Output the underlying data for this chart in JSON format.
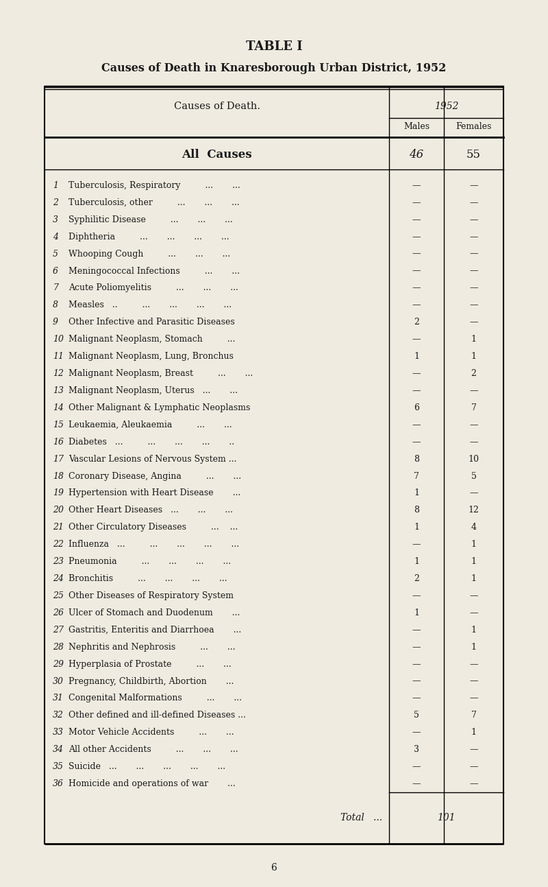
{
  "title": "TABLE I",
  "subtitle": "Causes of Death in Knaresborough Urban District, 1952",
  "bg_color": "#f0ebe0",
  "text_color": "#1a1a1a",
  "col_header": "1952",
  "col_sub1": "Males",
  "col_sub2": "Females",
  "causes_header": "Causes of Death.",
  "all_causes_label": "All  Causes",
  "all_causes_males": "46",
  "all_causes_females": "55",
  "total_label": "Total   ...",
  "total_value": "101",
  "page_number": "6",
  "rows": [
    {
      "num": "1",
      "cause": "Tuberculosis, Respiratory         ...       ...",
      "males": "—",
      "females": "—"
    },
    {
      "num": "2",
      "cause": "Tuberculosis, other         ...       ...       ...",
      "males": "—",
      "females": "—"
    },
    {
      "num": "3",
      "cause": "Syphilitic Disease         ...       ...       ...",
      "males": "—",
      "females": "—"
    },
    {
      "num": "4",
      "cause": "Diphtheria         ...       ...       ...       ...",
      "males": "—",
      "females": "—"
    },
    {
      "num": "5",
      "cause": "Whooping Cough         ...       ...       ...",
      "males": "—",
      "females": "—"
    },
    {
      "num": "6",
      "cause": "Meningococcal Infections         ...       ...",
      "males": "—",
      "females": "—"
    },
    {
      "num": "7",
      "cause": "Acute Poliomyelitis         ...       ...       ...",
      "males": "—",
      "females": "—"
    },
    {
      "num": "8",
      "cause": "Measles   ..         ...       ...       ...       ...",
      "males": "—",
      "females": "—"
    },
    {
      "num": "9",
      "cause": "Other Infective and Parasitic Diseases",
      "males": "2",
      "females": "—"
    },
    {
      "num": "10",
      "cause": "Malignant Neoplasm, Stomach         ...",
      "males": "—",
      "females": "1"
    },
    {
      "num": "11",
      "cause": "Malignant Neoplasm, Lung, Bronchus",
      "males": "1",
      "females": "1"
    },
    {
      "num": "12",
      "cause": "Malignant Neoplasm, Breast         ...       ...",
      "males": "—",
      "females": "2"
    },
    {
      "num": "13",
      "cause": "Malignant Neoplasm, Uterus   ...       ...",
      "males": "—",
      "females": "—"
    },
    {
      "num": "14",
      "cause": "Other Malignant & Lymphatic Neoplasms",
      "males": "6",
      "females": "7"
    },
    {
      "num": "15",
      "cause": "Leukaemia, Aleukaemia         ...       ...",
      "males": "—",
      "females": "—"
    },
    {
      "num": "16",
      "cause": "Diabetes   ...         ...       ...       ...       ..",
      "males": "—",
      "females": "—"
    },
    {
      "num": "17",
      "cause": "Vascular Lesions of Nervous System ...",
      "males": "8",
      "females": "10"
    },
    {
      "num": "18",
      "cause": "Coronary Disease, Angina         ...       ...",
      "males": "7",
      "females": "5"
    },
    {
      "num": "19",
      "cause": "Hypertension with Heart Disease       ...",
      "males": "1",
      "females": "—"
    },
    {
      "num": "20",
      "cause": "Other Heart Diseases   ...       ...       ...",
      "males": "8",
      "females": "12"
    },
    {
      "num": "21",
      "cause": "Other Circulatory Diseases         ...    ...",
      "males": "1",
      "females": "4"
    },
    {
      "num": "22",
      "cause": "Influenza   ...         ...       ...       ...       ...",
      "males": "—",
      "females": "1"
    },
    {
      "num": "23",
      "cause": "Pneumonia         ...       ...       ...       ...",
      "males": "1",
      "females": "1"
    },
    {
      "num": "24",
      "cause": "Bronchitis         ...       ...       ...       ...",
      "males": "2",
      "females": "1"
    },
    {
      "num": "25",
      "cause": "Other Diseases of Respiratory System",
      "males": "—",
      "females": "—"
    },
    {
      "num": "26",
      "cause": "Ulcer of Stomach and Duodenum       ...",
      "males": "1",
      "females": "—"
    },
    {
      "num": "27",
      "cause": "Gastritis, Enteritis and Diarrhoea       ...",
      "males": "—",
      "females": "1"
    },
    {
      "num": "28",
      "cause": "Nephritis and Nephrosis         ...       ...",
      "males": "—",
      "females": "1"
    },
    {
      "num": "29",
      "cause": "Hyperplasia of Prostate         ...       ...",
      "males": "—",
      "females": "—"
    },
    {
      "num": "30",
      "cause": "Pregnancy, Childbirth, Abortion       ...",
      "males": "—",
      "females": "—"
    },
    {
      "num": "31",
      "cause": "Congenital Malformations         ...       ...",
      "males": "—",
      "females": "—"
    },
    {
      "num": "32",
      "cause": "Other defined and ill-defined Diseases ...",
      "males": "5",
      "females": "7"
    },
    {
      "num": "33",
      "cause": "Motor Vehicle Accidents         ...       ...",
      "males": "—",
      "females": "1"
    },
    {
      "num": "34",
      "cause": "All other Accidents         ...       ...       ...",
      "males": "3",
      "females": "—"
    },
    {
      "num": "35",
      "cause": "Suicide   ...       ...       ...       ...       ...",
      "males": "—",
      "females": "—"
    },
    {
      "num": "36",
      "cause": "Homicide and operations of war       ...",
      "males": "—",
      "females": "—"
    }
  ]
}
